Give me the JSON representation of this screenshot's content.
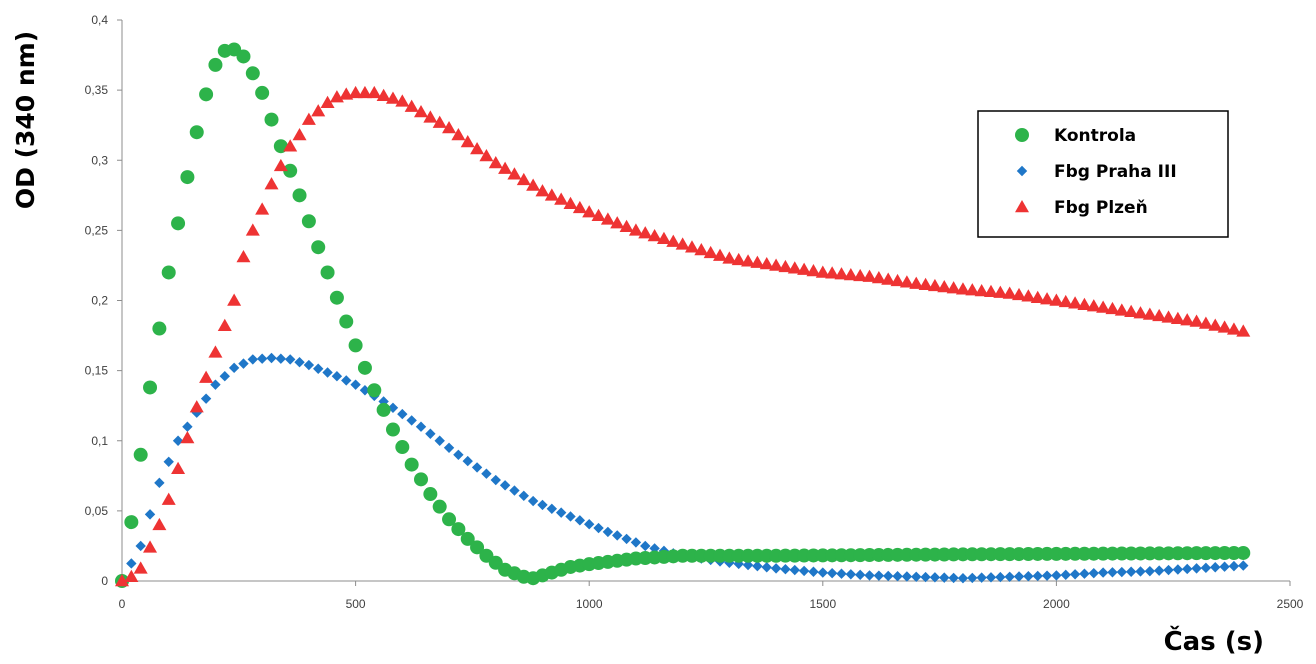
{
  "chart_data": {
    "type": "scatter",
    "title": "",
    "xlabel": "Čas (s)",
    "ylabel": "OD (340 nm)",
    "xlim": [
      0,
      2500
    ],
    "ylim": [
      0,
      0.4
    ],
    "x_ticks": [
      0,
      500,
      1000,
      1500,
      2000,
      2500
    ],
    "x_tick_labels": [
      "0",
      "500",
      "1000",
      "1500",
      "2000",
      "2500"
    ],
    "y_ticks": [
      0,
      0.05,
      0.1,
      0.15,
      0.2,
      0.25,
      0.3,
      0.35,
      0.4
    ],
    "y_tick_labels": [
      "0",
      "0,05",
      "0,1",
      "0,15",
      "0,2",
      "0,25",
      "0,3",
      "0,35",
      "0,4"
    ],
    "grid": false,
    "legend": {
      "position": "right"
    },
    "x_step": 20,
    "series": [
      {
        "name": "Kontrola",
        "marker": "circle",
        "color": "#2db34a",
        "step": 20,
        "anchors_x": [
          0,
          20,
          40,
          60,
          80,
          100,
          120,
          140,
          160,
          180,
          200,
          220,
          240,
          260,
          280,
          300,
          340,
          380,
          420,
          460,
          500,
          540,
          580,
          620,
          660,
          700,
          740,
          780,
          820,
          860,
          880,
          900,
          960,
          1000,
          1100,
          1200,
          1400,
          1800,
          2400
        ],
        "anchors_y": [
          0,
          0.042,
          0.09,
          0.138,
          0.18,
          0.22,
          0.255,
          0.288,
          0.32,
          0.347,
          0.368,
          0.378,
          0.379,
          0.374,
          0.362,
          0.348,
          0.31,
          0.275,
          0.238,
          0.202,
          0.168,
          0.136,
          0.108,
          0.083,
          0.062,
          0.044,
          0.03,
          0.018,
          0.008,
          0.003,
          0.002,
          0.004,
          0.01,
          0.012,
          0.016,
          0.018,
          0.018,
          0.019,
          0.02
        ]
      },
      {
        "name": "Fbg Praha III",
        "marker": "diamond",
        "color": "#1f77c8",
        "step": 20,
        "anchors_x": [
          0,
          40,
          80,
          120,
          160,
          200,
          240,
          280,
          320,
          360,
          400,
          460,
          500,
          560,
          640,
          720,
          800,
          880,
          960,
          1040,
          1120,
          1200,
          1300,
          1400,
          1500,
          1600,
          1700,
          1800,
          1900,
          2000,
          2100,
          2200,
          2300,
          2400
        ],
        "anchors_y": [
          0,
          0.025,
          0.07,
          0.1,
          0.12,
          0.14,
          0.152,
          0.158,
          0.159,
          0.158,
          0.154,
          0.146,
          0.14,
          0.128,
          0.11,
          0.09,
          0.072,
          0.057,
          0.046,
          0.035,
          0.025,
          0.018,
          0.013,
          0.009,
          0.006,
          0.004,
          0.003,
          0.002,
          0.003,
          0.004,
          0.006,
          0.007,
          0.009,
          0.011
        ]
      },
      {
        "name": "Fbg Plzeň",
        "marker": "triangle",
        "color": "#ee3333",
        "step": 20,
        "anchors_x": [
          0,
          20,
          40,
          60,
          80,
          100,
          120,
          140,
          160,
          180,
          200,
          220,
          240,
          260,
          280,
          300,
          320,
          340,
          360,
          380,
          400,
          420,
          440,
          460,
          480,
          500,
          520,
          540,
          560,
          600,
          700,
          800,
          900,
          1000,
          1100,
          1200,
          1300,
          1400,
          1500,
          1600,
          1700,
          1800,
          1900,
          2000,
          2100,
          2200,
          2300,
          2400
        ],
        "anchors_y": [
          0,
          0.003,
          0.009,
          0.024,
          0.04,
          0.058,
          0.08,
          0.102,
          0.124,
          0.145,
          0.163,
          0.182,
          0.2,
          0.231,
          0.25,
          0.265,
          0.283,
          0.296,
          0.31,
          0.318,
          0.329,
          0.335,
          0.341,
          0.345,
          0.347,
          0.348,
          0.348,
          0.348,
          0.346,
          0.342,
          0.323,
          0.298,
          0.278,
          0.263,
          0.25,
          0.24,
          0.23,
          0.225,
          0.22,
          0.217,
          0.212,
          0.208,
          0.205,
          0.2,
          0.195,
          0.19,
          0.185,
          0.178
        ]
      }
    ]
  }
}
